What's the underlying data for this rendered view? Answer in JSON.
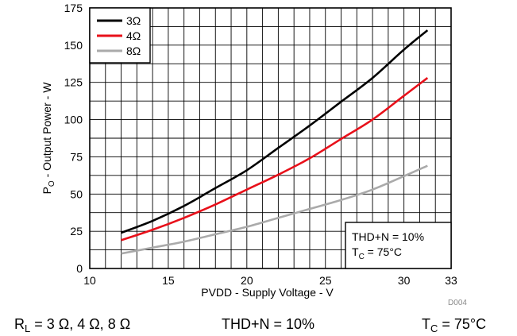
{
  "chart_data": {
    "type": "line",
    "xlabel": "PVDD - Supply Voltage - V",
    "ylabel_main": "P",
    "ylabel_sub": "O",
    "ylabel_rest": " - Output Power - W",
    "xlim": [
      10,
      33
    ],
    "ylim": [
      0,
      175
    ],
    "x_ticks": [
      10,
      15,
      20,
      25,
      30,
      33
    ],
    "y_ticks": [
      0,
      25,
      50,
      75,
      100,
      125,
      150,
      175
    ],
    "grid": true,
    "legend_placement": "top-left",
    "series": [
      {
        "name": "3Ω",
        "color": "#000000",
        "x": [
          12,
          14,
          16,
          18,
          20,
          22,
          24,
          26,
          28,
          30,
          31.5
        ],
        "y": [
          24,
          32,
          42,
          54,
          66,
          81,
          96,
          112,
          128,
          147,
          160
        ]
      },
      {
        "name": "4Ω",
        "color": "#e8101a",
        "x": [
          12,
          14,
          16,
          18,
          20,
          22,
          24,
          26,
          28,
          30,
          31.5
        ],
        "y": [
          19,
          26,
          34,
          43,
          53,
          63,
          74,
          87,
          100,
          116,
          128
        ]
      },
      {
        "name": "8Ω",
        "color": "#aaaaaa",
        "x": [
          12,
          14,
          16,
          18,
          20,
          22,
          24,
          26,
          28,
          30,
          31.5
        ],
        "y": [
          10,
          14,
          18,
          23,
          28,
          34,
          40,
          46,
          53,
          62,
          69
        ]
      }
    ],
    "annotation": {
      "line1": "THD+N = 10%",
      "line2_main": "T",
      "line2_sub": "C",
      "line2_rest": " = 75°C"
    },
    "doc_id": "D004"
  },
  "caption": {
    "load_main": "R",
    "load_sub": "L",
    "load_rest": " = 3 Ω, 4 Ω, 8 Ω",
    "thd": "THD+N = 10%",
    "temp_main": "T",
    "temp_sub": "C",
    "temp_rest": " = 75°C"
  }
}
